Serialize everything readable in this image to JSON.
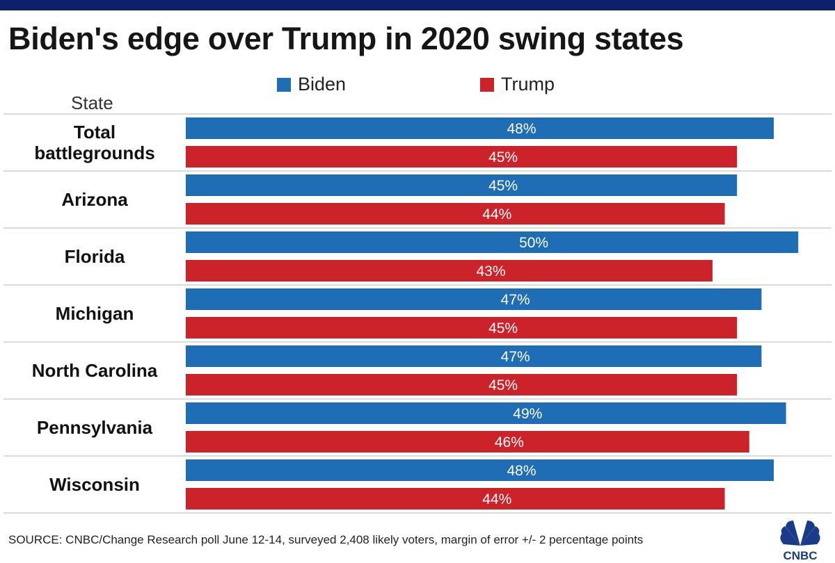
{
  "chart_data": {
    "type": "bar",
    "title": "Biden's edge over Trump in 2020 swing states",
    "category_header": "State",
    "categories": [
      [
        "Total",
        "battlegrounds"
      ],
      [
        "Arizona"
      ],
      [
        "Florida"
      ],
      [
        "Michigan"
      ],
      [
        "North Carolina"
      ],
      [
        "Pennsylvania"
      ],
      [
        "Wisconsin"
      ]
    ],
    "series": [
      {
        "name": "Biden",
        "color": "#1f6db5",
        "values": [
          48,
          45,
          50,
          47,
          47,
          49,
          48
        ]
      },
      {
        "name": "Trump",
        "color": "#cc2229",
        "values": [
          45,
          44,
          43,
          45,
          45,
          46,
          44
        ]
      }
    ],
    "value_suffix": "%",
    "xlim": [
      0,
      50
    ],
    "legend": "top-center"
  },
  "source": "SOURCE: CNBC/Change Research poll June 12-14, surveyed 2,408 likely voters, margin of error +/- 2 percentage points",
  "logo": "CNBC"
}
